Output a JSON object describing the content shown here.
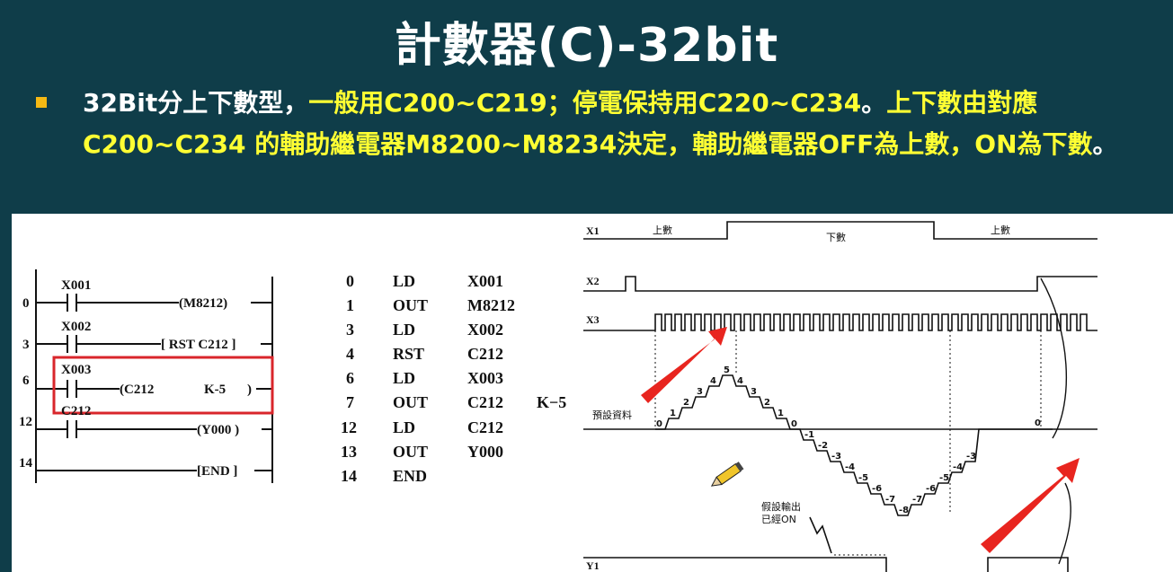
{
  "title": "計數器(C)-32bit",
  "bullet": {
    "p1": "32Bit分上下數型，",
    "p2": "一般用C200~C219；停電保持用C220~C234",
    "p3": "。",
    "p4": "上下數由對應C200~C234 的輔助繼電器M8200~M8234決定，輔助繼電器OFF為上數，ON為下數",
    "p5": "。"
  },
  "ladder": {
    "rungs": [
      {
        "step": "0",
        "contact": "X001",
        "coil": "(M8212)"
      },
      {
        "step": "3",
        "contact": "X002",
        "coil": "[ RST  C212 ]"
      },
      {
        "step": "6",
        "contact": "X003",
        "coil": "(C212",
        "coil2": "K-5",
        "coil3": ")"
      },
      {
        "step": "12",
        "contact": "C212",
        "coil": "(Y000 )"
      },
      {
        "step": "14",
        "contact": "",
        "coil": "[END ]"
      }
    ],
    "highlight_color": "#d9262b"
  },
  "instructions": [
    {
      "step": "0",
      "op": "LD",
      "arg": "X001",
      "extra": ""
    },
    {
      "step": "1",
      "op": "OUT",
      "arg": "M8212",
      "extra": ""
    },
    {
      "step": "3",
      "op": "LD",
      "arg": "X002",
      "extra": ""
    },
    {
      "step": "4",
      "op": "RST",
      "arg": "C212",
      "extra": ""
    },
    {
      "step": "6",
      "op": "LD",
      "arg": "X003",
      "extra": ""
    },
    {
      "step": "7",
      "op": "OUT",
      "arg": "C212",
      "extra": "K−5"
    },
    {
      "step": "12",
      "op": "LD",
      "arg": "C212",
      "extra": ""
    },
    {
      "step": "13",
      "op": "OUT",
      "arg": "Y000",
      "extra": ""
    },
    {
      "step": "14",
      "op": "END",
      "arg": "",
      "extra": ""
    }
  ],
  "timing": {
    "signals": {
      "x1": "X1",
      "x2": "X2",
      "x3": "X3",
      "y1": "Y1"
    },
    "x1_labels": {
      "up1": "上數",
      "down": "下數",
      "up2": "上數"
    },
    "preset_label": "預設資料",
    "output_note": [
      "假設輸出",
      "已經ON"
    ],
    "up_counts": [
      "0",
      "1",
      "2",
      "3",
      "4",
      "5"
    ],
    "down_counts": [
      "4",
      "3",
      "2",
      "1",
      "0",
      "-1",
      "-2",
      "-3",
      "-4",
      "-5",
      "-6",
      "-7",
      "-8"
    ],
    "up_again_counts": [
      "-7",
      "-6",
      "-5",
      "-4",
      "-3"
    ],
    "final_zero": "0",
    "arrow_color": "#e8251f"
  }
}
